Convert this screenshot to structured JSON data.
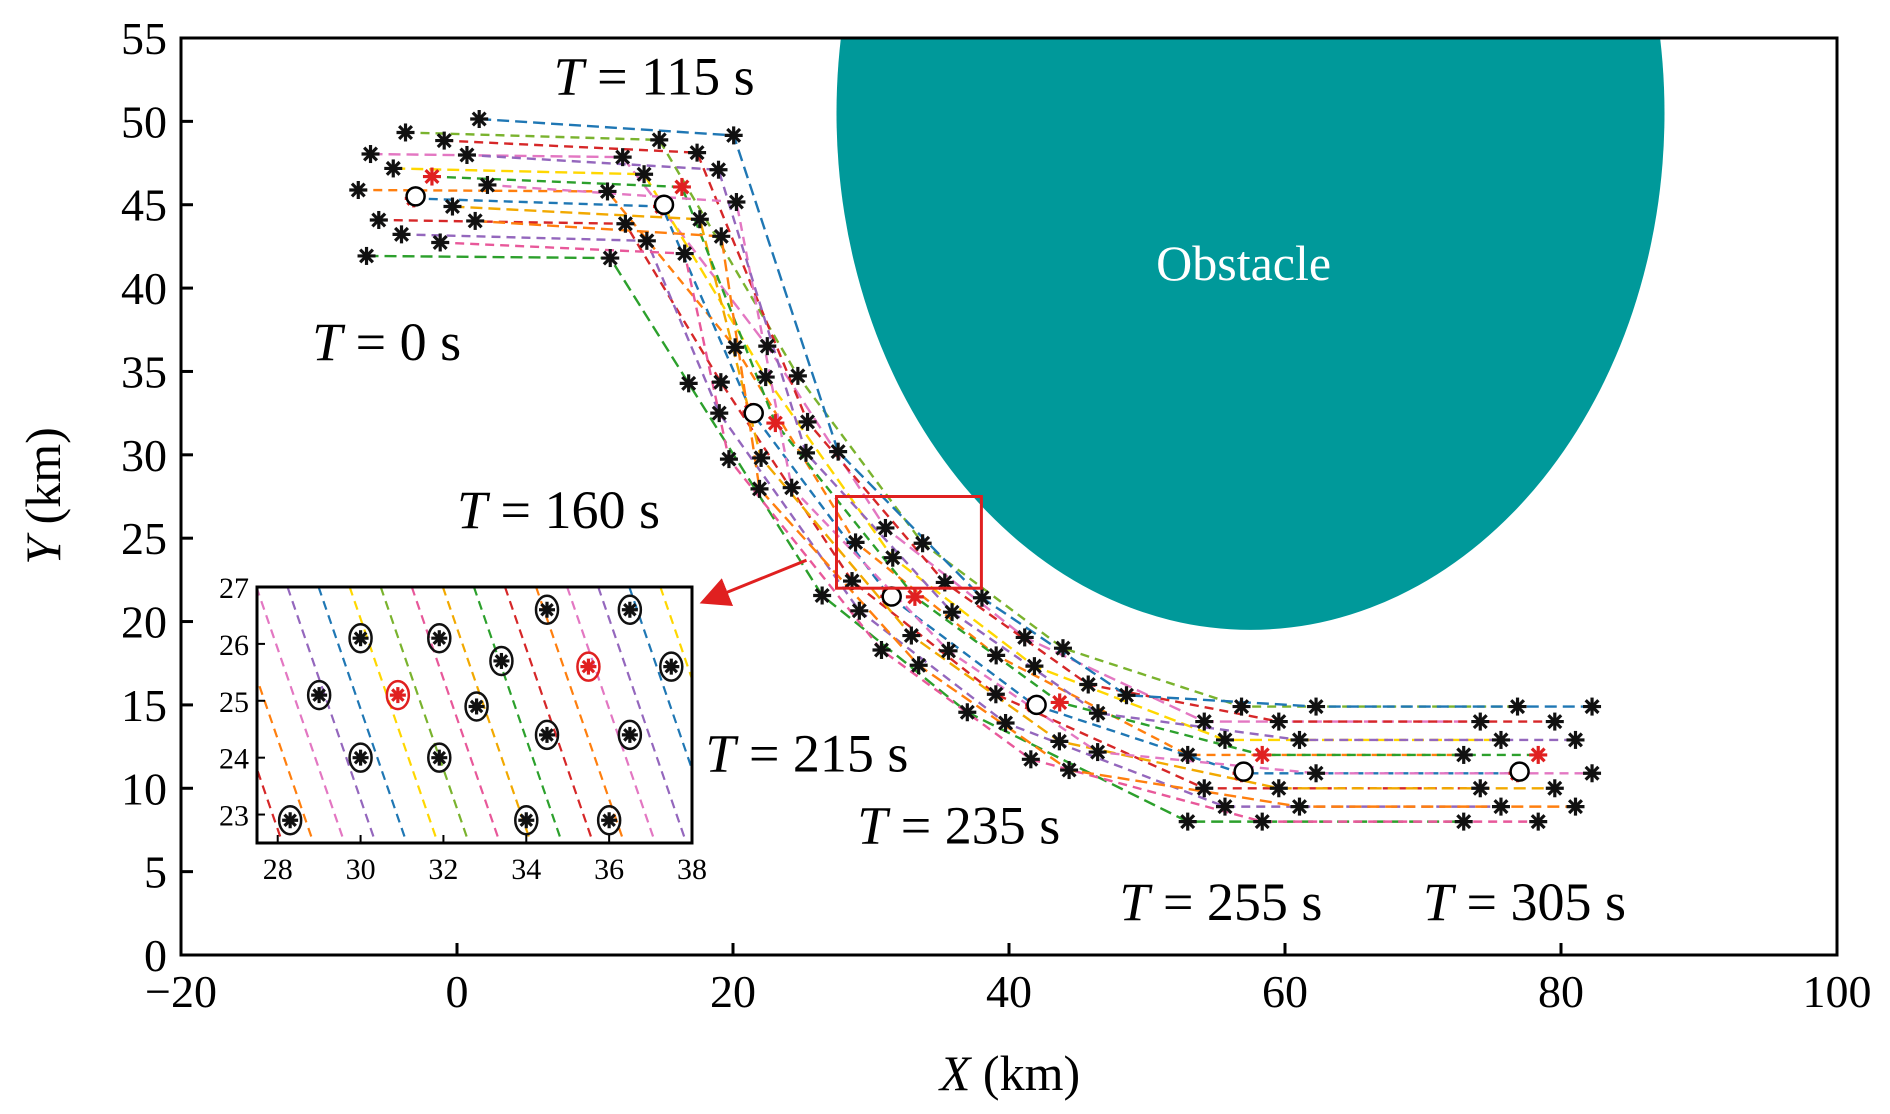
{
  "chart_data": {
    "type": "scatter",
    "xlabel": {
      "var": "X",
      "unit": " (km)"
    },
    "ylabel": {
      "var": "Y",
      "unit": " (km)"
    },
    "xlim": [
      -20,
      100
    ],
    "ylim": [
      0,
      55
    ],
    "xticks": [
      -20,
      0,
      20,
      40,
      60,
      80,
      100
    ],
    "yticks": [
      0,
      5,
      10,
      15,
      20,
      25,
      30,
      35,
      40,
      45,
      50,
      55
    ],
    "x_tick_labels": [
      "−20",
      "0",
      "20",
      "40",
      "60",
      "80",
      "100"
    ],
    "grid": false,
    "obstacle": {
      "label": "Obstacle",
      "color": "#00999a",
      "center": [
        57.5,
        50.5
      ],
      "radius_x": 30,
      "radius_y": 31
    },
    "time_labels": [
      {
        "var": "T",
        "text": " = 0 s",
        "x": -10.5,
        "y": 35.7
      },
      {
        "var": "T",
        "text": " = 115 s",
        "x": 7,
        "y": 51.6
      },
      {
        "var": "T",
        "text": " = 160 s",
        "x": 0,
        "y": 25.6
      },
      {
        "var": "T",
        "text": " = 215 s",
        "x": 18,
        "y": 11
      },
      {
        "var": "T",
        "text": " = 235 s",
        "x": 29,
        "y": 6.7
      },
      {
        "var": "T",
        "text": " = 255 s",
        "x": 48,
        "y": 2.1
      },
      {
        "var": "T",
        "text": " = 305 s",
        "x": 70,
        "y": 2.1
      }
    ],
    "formation_centers": [
      {
        "T": 0,
        "x": -3,
        "y": 45.5
      },
      {
        "T": 115,
        "x": 15,
        "y": 45
      },
      {
        "T": 160,
        "x": 21.5,
        "y": 32.5
      },
      {
        "T": 215,
        "x": 31.5,
        "y": 21.5
      },
      {
        "T": 235,
        "x": 42,
        "y": 15
      },
      {
        "T": 255,
        "x": 57,
        "y": 11
      },
      {
        "T": 305,
        "x": 77,
        "y": 11
      }
    ],
    "zoom_box": {
      "x": [
        27.5,
        38
      ],
      "y": [
        22,
        27.5
      ]
    },
    "inset": {
      "xlim": [
        27.5,
        38
      ],
      "ylim": [
        22.5,
        27
      ],
      "xticks": [
        28,
        30,
        32,
        34,
        36,
        38
      ],
      "yticks": [
        23,
        24,
        25,
        26,
        27
      ],
      "agents": [
        [
          28.3,
          22.9
        ],
        [
          30,
          24
        ],
        [
          30,
          26.1
        ],
        [
          29,
          25.1
        ],
        [
          30.9,
          25.1
        ],
        [
          31.9,
          24
        ],
        [
          31.9,
          26.1
        ],
        [
          32.8,
          24.9
        ],
        [
          33.4,
          25.7
        ],
        [
          34,
          22.9
        ],
        [
          34.5,
          24.4
        ],
        [
          34.5,
          26.6
        ],
        [
          35.5,
          25.6
        ],
        [
          36,
          22.9
        ],
        [
          36.5,
          24.4
        ],
        [
          36.5,
          26.6
        ],
        [
          37.5,
          25.6
        ]
      ],
      "leader_agents": [
        [
          30.9,
          25.1
        ],
        [
          35.5,
          25.6
        ]
      ]
    },
    "series_colors": [
      "#2ca02c",
      "#d62728",
      "#ff7f0e",
      "#e377c2",
      "#9467bd",
      "#1f77b4",
      "#ffd700",
      "#7ab32e",
      "#e8589a",
      "#f2a900"
    ]
  }
}
